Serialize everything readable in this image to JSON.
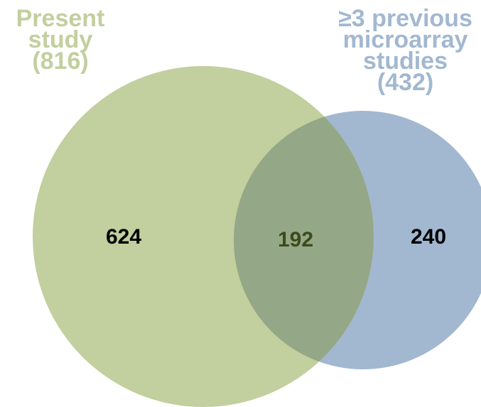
{
  "sets": [
    {
      "id": "a",
      "lines": [
        "Present",
        "study",
        "(816)"
      ],
      "color": "#c2cf9e"
    },
    {
      "id": "b",
      "lines": [
        "≥3 previous",
        "microarray",
        "studies",
        "(432)"
      ],
      "color": "#a2b8d0"
    }
  ],
  "overlap_color": "#94a887",
  "regions": {
    "only_a": "624",
    "both": "192",
    "only_b": "240"
  },
  "text_colors": {
    "count": "#000000",
    "overlap_count": "#3c4a1e"
  }
}
